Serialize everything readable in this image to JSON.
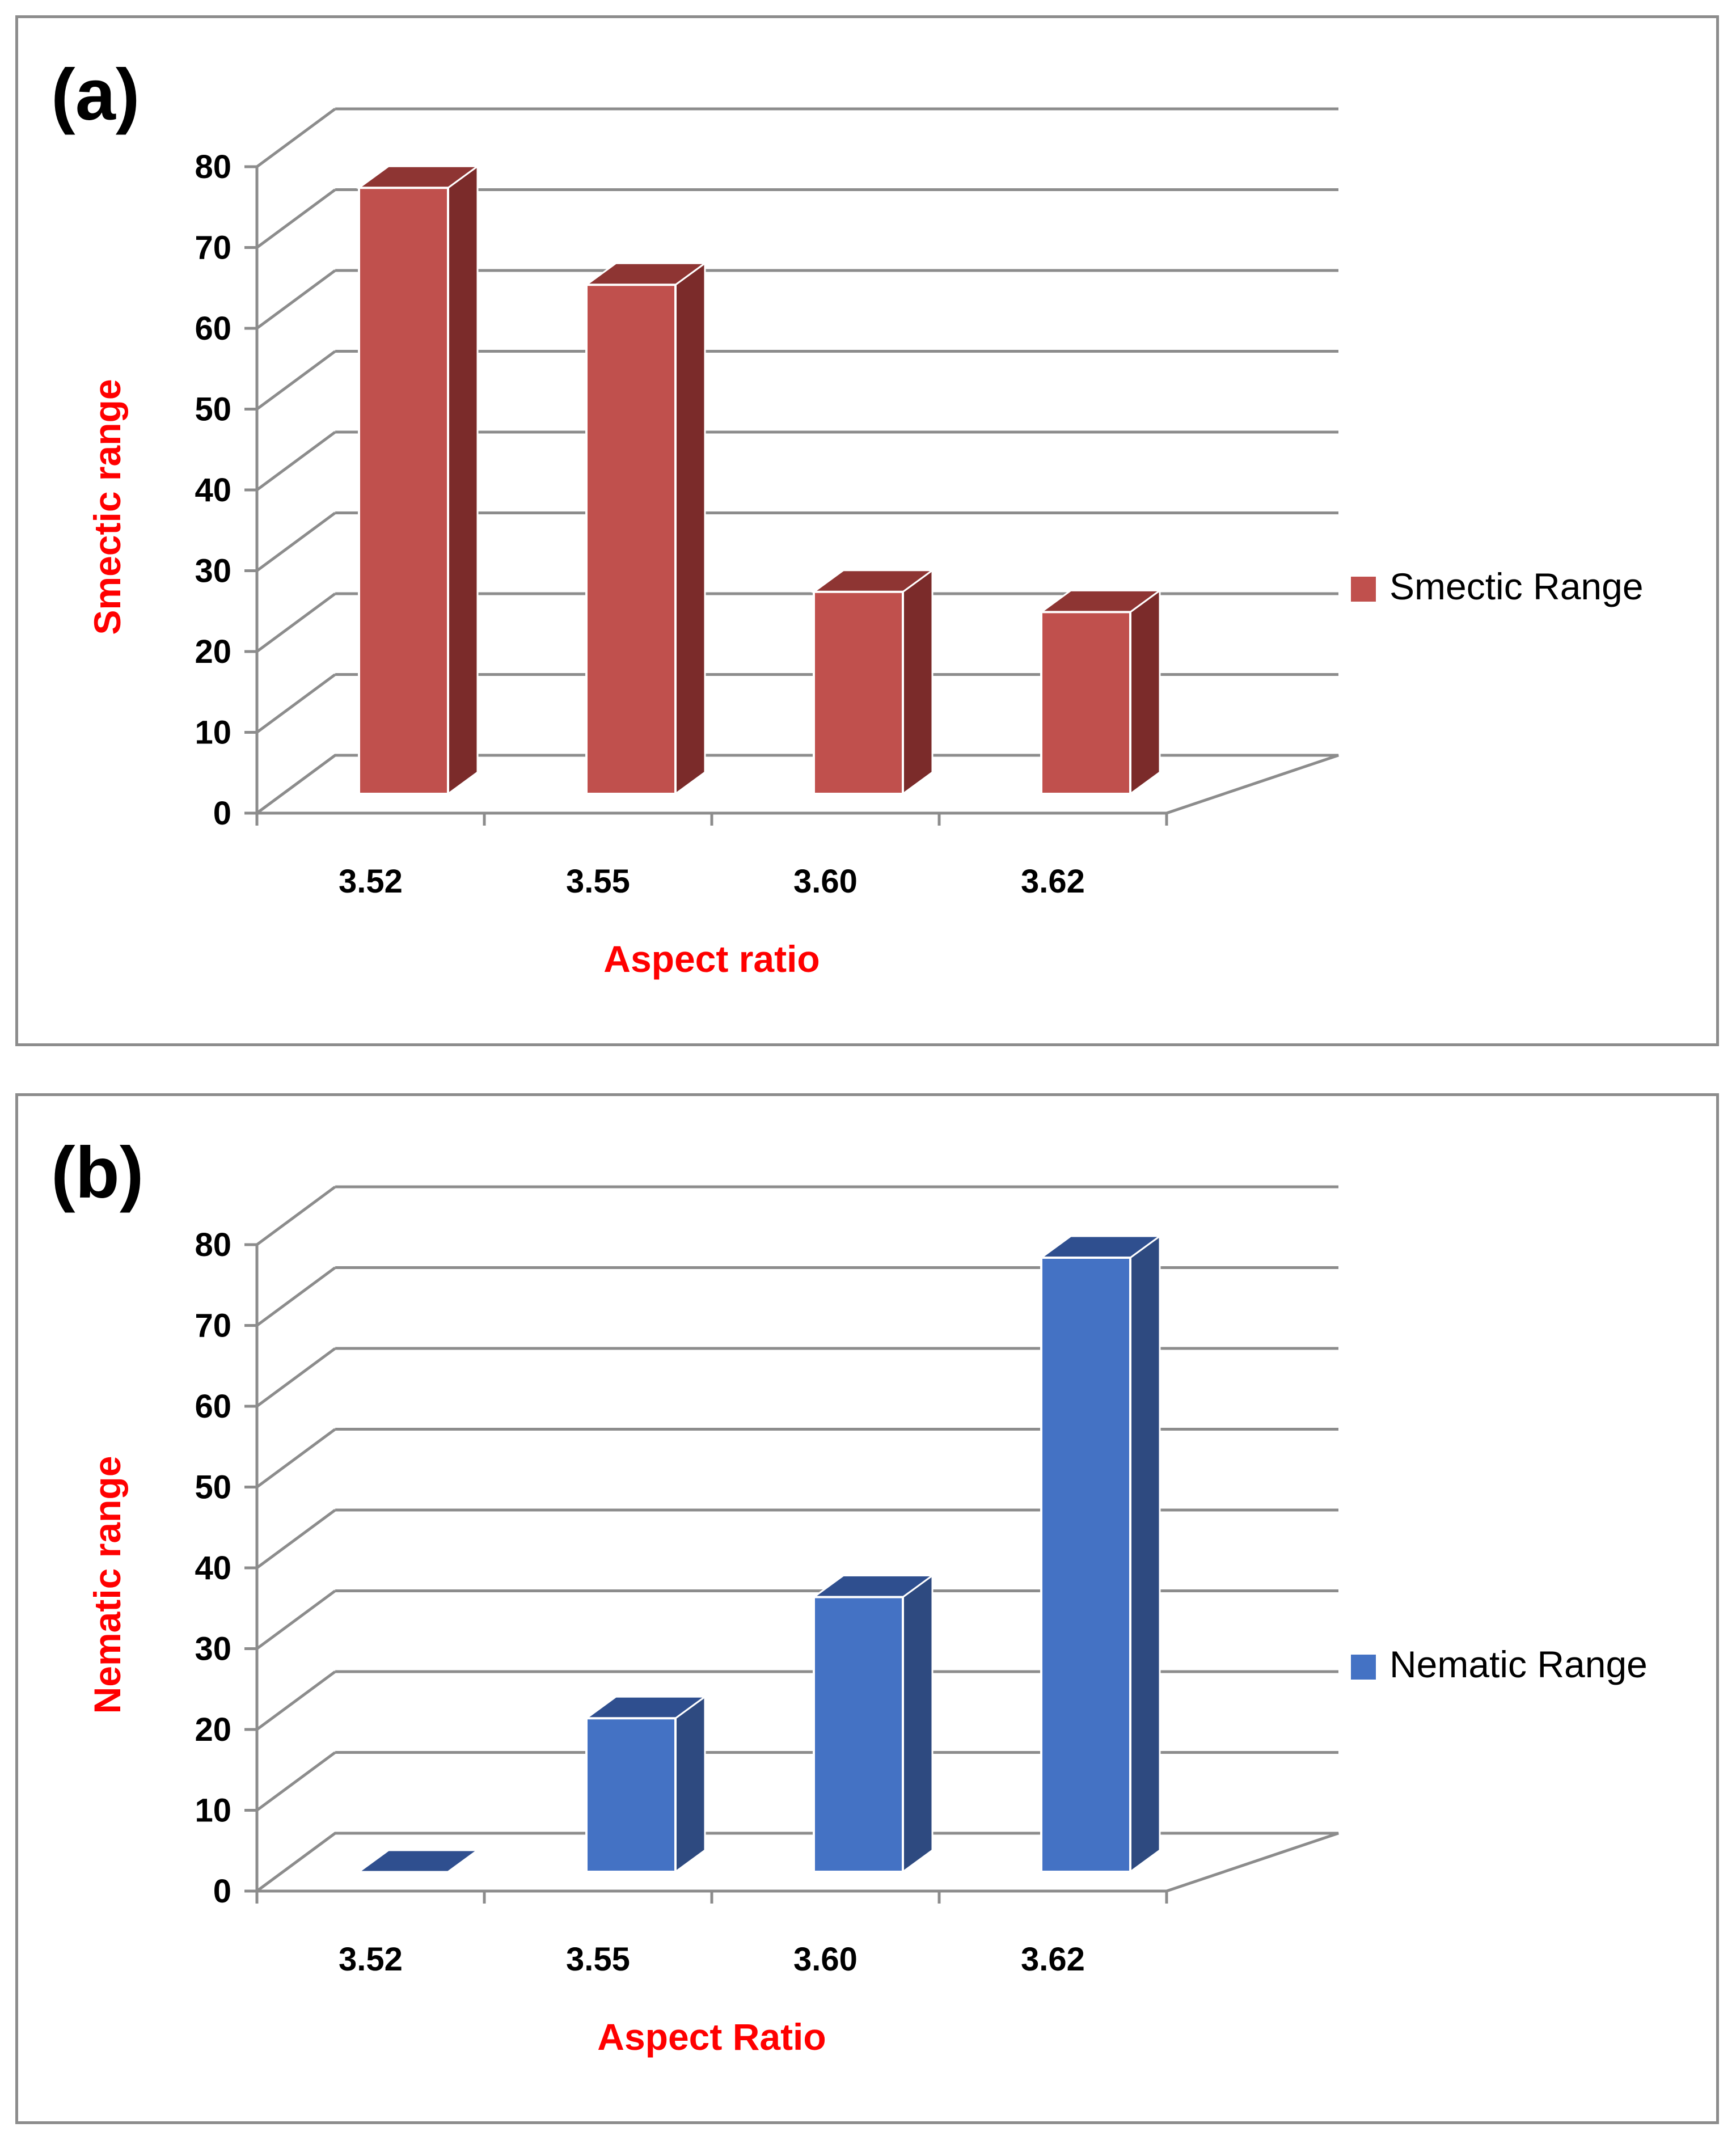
{
  "chart_data": [
    {
      "panel_label": "(a)",
      "type": "bar",
      "categories": [
        "3.52",
        "3.55",
        "3.60",
        "3.62"
      ],
      "series": [
        {
          "name": "Smectic Range",
          "values": [
            75,
            63,
            25,
            22.5
          ]
        }
      ],
      "xlabel": "Aspect ratio",
      "ylabel": "Smectic range",
      "yticks": [
        "0",
        "10",
        "20",
        "30",
        "40",
        "50",
        "60",
        "70",
        "80"
      ],
      "ylim": [
        0,
        80
      ],
      "grid": true,
      "legend": "right",
      "colors": {
        "front": "#c0504d",
        "side": "#7b2b2a",
        "top": "#8e3533",
        "label": "#ff0000"
      }
    },
    {
      "panel_label": "(b)",
      "type": "bar",
      "categories": [
        "3.52",
        "3.55",
        "3.60",
        "3.62"
      ],
      "series": [
        {
          "name": "Nematic Range",
          "values": [
            0,
            19,
            34,
            76
          ]
        }
      ],
      "xlabel": "Aspect Ratio",
      "ylabel": "Nematic range",
      "yticks": [
        "0",
        "10",
        "20",
        "30",
        "40",
        "50",
        "60",
        "70",
        "80"
      ],
      "ylim": [
        0,
        80
      ],
      "grid": true,
      "legend": "right",
      "colors": {
        "front": "#4472c4",
        "side": "#2e4a80",
        "top": "#2f4f8f",
        "label": "#ff0000"
      }
    }
  ]
}
